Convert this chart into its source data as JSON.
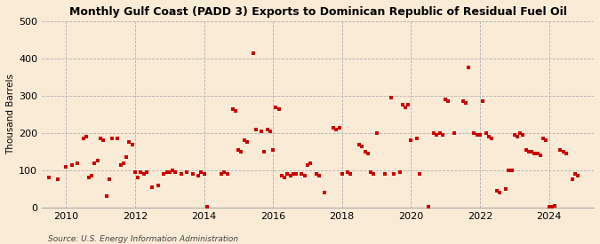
{
  "title": "Monthly Gulf Coast (PADD 3) Exports to Dominican Republic of Residual Fuel Oil",
  "ylabel": "Thousand Barrels",
  "source": "Source: U.S. Energy Information Administration",
  "background_color": "#faebd7",
  "marker_color": "#cc0000",
  "ylim": [
    0,
    500
  ],
  "yticks": [
    0,
    100,
    200,
    300,
    400,
    500
  ],
  "xlim": [
    2009.3,
    2025.3
  ],
  "xticks": [
    2010,
    2012,
    2014,
    2016,
    2018,
    2020,
    2022,
    2024
  ],
  "data": [
    [
      2009.5,
      80
    ],
    [
      2009.75,
      75
    ],
    [
      2010.0,
      110
    ],
    [
      2010.17,
      115
    ],
    [
      2010.33,
      120
    ],
    [
      2010.5,
      185
    ],
    [
      2010.58,
      190
    ],
    [
      2010.67,
      80
    ],
    [
      2010.75,
      85
    ],
    [
      2010.83,
      120
    ],
    [
      2010.92,
      125
    ],
    [
      2011.0,
      185
    ],
    [
      2011.08,
      180
    ],
    [
      2011.17,
      30
    ],
    [
      2011.25,
      75
    ],
    [
      2011.33,
      185
    ],
    [
      2011.5,
      185
    ],
    [
      2011.58,
      115
    ],
    [
      2011.67,
      120
    ],
    [
      2011.75,
      135
    ],
    [
      2011.83,
      175
    ],
    [
      2011.92,
      170
    ],
    [
      2012.0,
      95
    ],
    [
      2012.08,
      80
    ],
    [
      2012.17,
      95
    ],
    [
      2012.25,
      90
    ],
    [
      2012.33,
      95
    ],
    [
      2012.5,
      55
    ],
    [
      2012.67,
      60
    ],
    [
      2012.83,
      90
    ],
    [
      2012.92,
      95
    ],
    [
      2013.0,
      95
    ],
    [
      2013.08,
      100
    ],
    [
      2013.17,
      95
    ],
    [
      2013.33,
      90
    ],
    [
      2013.5,
      95
    ],
    [
      2013.67,
      90
    ],
    [
      2013.83,
      85
    ],
    [
      2013.92,
      95
    ],
    [
      2014.0,
      90
    ],
    [
      2014.08,
      2
    ],
    [
      2014.5,
      90
    ],
    [
      2014.58,
      95
    ],
    [
      2014.67,
      90
    ],
    [
      2014.83,
      265
    ],
    [
      2014.92,
      260
    ],
    [
      2015.0,
      155
    ],
    [
      2015.08,
      150
    ],
    [
      2015.17,
      180
    ],
    [
      2015.25,
      175
    ],
    [
      2015.42,
      415
    ],
    [
      2015.5,
      210
    ],
    [
      2015.67,
      205
    ],
    [
      2015.75,
      150
    ],
    [
      2015.83,
      210
    ],
    [
      2015.92,
      205
    ],
    [
      2016.0,
      155
    ],
    [
      2016.08,
      270
    ],
    [
      2016.17,
      265
    ],
    [
      2016.25,
      85
    ],
    [
      2016.33,
      80
    ],
    [
      2016.42,
      90
    ],
    [
      2016.5,
      85
    ],
    [
      2016.58,
      90
    ],
    [
      2016.67,
      90
    ],
    [
      2016.83,
      90
    ],
    [
      2016.92,
      85
    ],
    [
      2017.0,
      115
    ],
    [
      2017.08,
      120
    ],
    [
      2017.25,
      90
    ],
    [
      2017.33,
      85
    ],
    [
      2017.5,
      40
    ],
    [
      2017.75,
      215
    ],
    [
      2017.83,
      210
    ],
    [
      2017.92,
      215
    ],
    [
      2018.0,
      90
    ],
    [
      2018.17,
      95
    ],
    [
      2018.25,
      90
    ],
    [
      2018.5,
      170
    ],
    [
      2018.58,
      165
    ],
    [
      2018.67,
      150
    ],
    [
      2018.75,
      145
    ],
    [
      2018.83,
      95
    ],
    [
      2018.92,
      90
    ],
    [
      2019.0,
      200
    ],
    [
      2019.25,
      90
    ],
    [
      2019.42,
      295
    ],
    [
      2019.5,
      90
    ],
    [
      2019.67,
      95
    ],
    [
      2019.75,
      275
    ],
    [
      2019.83,
      270
    ],
    [
      2019.92,
      275
    ],
    [
      2020.0,
      180
    ],
    [
      2020.17,
      185
    ],
    [
      2020.25,
      90
    ],
    [
      2020.5,
      2
    ],
    [
      2020.67,
      200
    ],
    [
      2020.75,
      195
    ],
    [
      2020.83,
      200
    ],
    [
      2020.92,
      195
    ],
    [
      2021.0,
      290
    ],
    [
      2021.08,
      285
    ],
    [
      2021.25,
      200
    ],
    [
      2021.5,
      285
    ],
    [
      2021.58,
      280
    ],
    [
      2021.67,
      375
    ],
    [
      2021.83,
      200
    ],
    [
      2021.92,
      195
    ],
    [
      2022.0,
      195
    ],
    [
      2022.08,
      285
    ],
    [
      2022.17,
      200
    ],
    [
      2022.25,
      190
    ],
    [
      2022.33,
      185
    ],
    [
      2022.5,
      45
    ],
    [
      2022.58,
      40
    ],
    [
      2022.75,
      50
    ],
    [
      2022.83,
      100
    ],
    [
      2022.92,
      100
    ],
    [
      2023.0,
      195
    ],
    [
      2023.08,
      190
    ],
    [
      2023.17,
      200
    ],
    [
      2023.25,
      195
    ],
    [
      2023.33,
      155
    ],
    [
      2023.42,
      150
    ],
    [
      2023.5,
      150
    ],
    [
      2023.58,
      145
    ],
    [
      2023.67,
      145
    ],
    [
      2023.75,
      140
    ],
    [
      2023.83,
      185
    ],
    [
      2023.92,
      180
    ],
    [
      2024.0,
      2
    ],
    [
      2024.08,
      2
    ],
    [
      2024.17,
      5
    ],
    [
      2024.33,
      155
    ],
    [
      2024.42,
      150
    ],
    [
      2024.5,
      145
    ],
    [
      2024.67,
      75
    ],
    [
      2024.75,
      90
    ],
    [
      2024.83,
      85
    ]
  ]
}
